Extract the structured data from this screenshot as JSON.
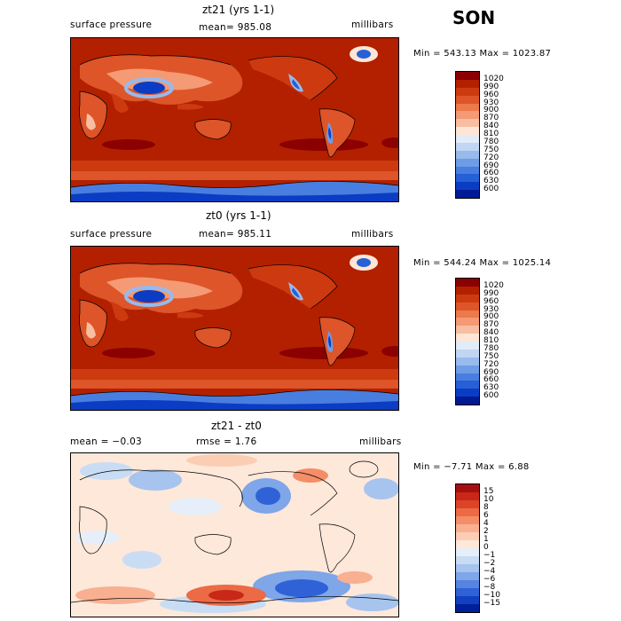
{
  "season": "SON",
  "panels": [
    {
      "title": "zt21 (yrs 1-1)",
      "left_label": "surface pressure",
      "center_label": "mean= 985.08",
      "right_label": "millibars",
      "stats": "Min = 543.13 Max = 1023.87",
      "colorbar": {
        "labels": [
          "1020",
          "990",
          "960",
          "930",
          "900",
          "870",
          "840",
          "810",
          "780",
          "750",
          "720",
          "690",
          "660",
          "630",
          "600"
        ],
        "colors": [
          "#8b0000",
          "#b22000",
          "#cd3a10",
          "#dd5528",
          "#ec7a4b",
          "#f49a74",
          "#f8bea2",
          "#fde6d5",
          "#e2ecf8",
          "#c0d6f2",
          "#98baec",
          "#6e9ce6",
          "#487ee0",
          "#2660d6",
          "#0b3cc4",
          "#001a96"
        ]
      }
    },
    {
      "title": "zt0 (yrs 1-1)",
      "left_label": "surface pressure",
      "center_label": "mean= 985.11",
      "right_label": "millibars",
      "stats": "Min = 544.24 Max = 1025.14",
      "colorbar": {
        "labels": [
          "1020",
          "990",
          "960",
          "930",
          "900",
          "870",
          "840",
          "810",
          "780",
          "750",
          "720",
          "690",
          "660",
          "630",
          "600"
        ],
        "colors": [
          "#8b0000",
          "#b22000",
          "#cd3a10",
          "#dd5528",
          "#ec7a4b",
          "#f49a74",
          "#f8bea2",
          "#fde6d5",
          "#e2ecf8",
          "#c0d6f2",
          "#98baec",
          "#6e9ce6",
          "#487ee0",
          "#2660d6",
          "#0b3cc4",
          "#001a96"
        ]
      }
    },
    {
      "title": "zt21 - zt0",
      "left_label": "mean =   −0.03",
      "center_label": "rmse =    1.76",
      "right_label": "millibars",
      "stats": "Min =  −7.71 Max =   6.88",
      "colorbar": {
        "labels": [
          "15",
          "10",
          "8",
          "6",
          "4",
          "2",
          "1",
          "0",
          "−1",
          "−2",
          "−4",
          "−6",
          "−8",
          "−10",
          "−15"
        ],
        "colors": [
          "#a50f0f",
          "#c82818",
          "#dc4428",
          "#ec6a45",
          "#f48e68",
          "#f8b091",
          "#fbcdb4",
          "#fde8da",
          "#e6eff9",
          "#c8dcf4",
          "#a6c4ee",
          "#7ea6e8",
          "#5684e0",
          "#2f62d6",
          "#1240c0",
          "#00209a"
        ]
      }
    }
  ]
}
